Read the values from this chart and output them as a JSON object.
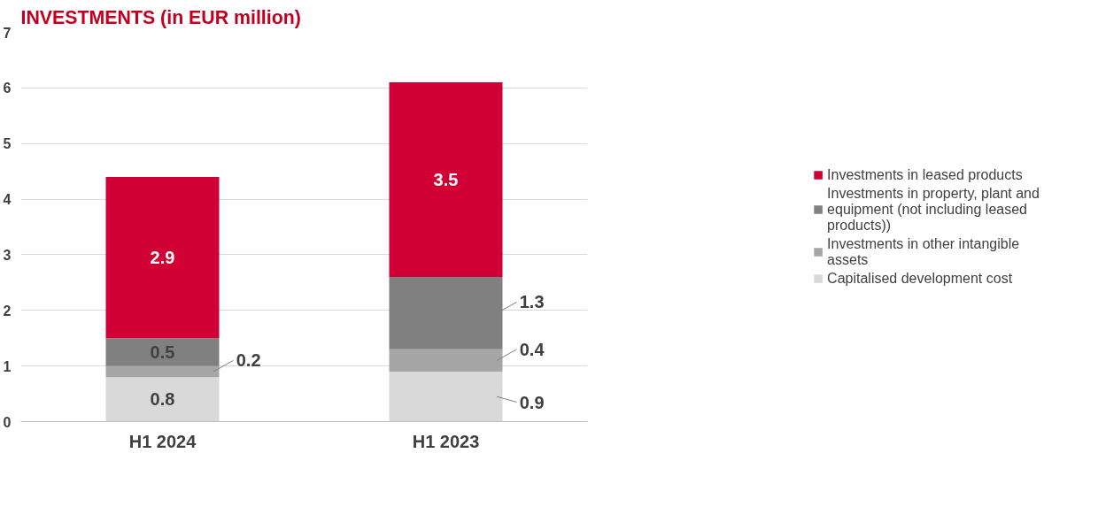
{
  "chart_data": {
    "type": "bar",
    "title": "INVESTMENTS (in EUR million)",
    "categories": [
      "H1 2024",
      "H1 2023"
    ],
    "stacked": true,
    "series": [
      {
        "name": "Capitalised development cost",
        "color": "#d9d9d9",
        "values": [
          0.8,
          0.9
        ]
      },
      {
        "name": "Investments in other intangible assets",
        "color": "#a6a6a6",
        "values": [
          0.2,
          0.4
        ]
      },
      {
        "name": "Investments in property, plant and equipment (not including leased products))",
        "color": "#808080",
        "values": [
          0.5,
          1.3
        ]
      },
      {
        "name": "Investments in leased products",
        "color": "#d10034",
        "values": [
          2.9,
          3.5
        ]
      }
    ],
    "ylim": [
      0,
      7
    ],
    "yticks": [
      0,
      1,
      2,
      3,
      4,
      5,
      6,
      7
    ],
    "grid": "y",
    "legend": "right",
    "data_labels": true
  }
}
